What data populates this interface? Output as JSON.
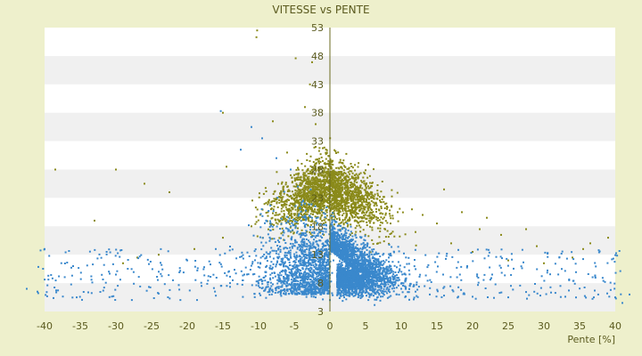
{
  "chart_data": {
    "type": "scatter",
    "title": "VITESSE vs PENTE",
    "xlabel": "Pente [%]",
    "ylabel": "",
    "xlim": [
      -40,
      40
    ],
    "ylim": [
      3,
      53
    ],
    "x_ticks": [
      "-40",
      "-35",
      "-30",
      "-25",
      "-20",
      "-15",
      "-10",
      "-5",
      "0",
      "5",
      "10",
      "15",
      "20",
      "25",
      "30",
      "35",
      "40"
    ],
    "y_ticks": [
      "53",
      "48",
      "43",
      "38",
      "33",
      "28",
      "23",
      "18",
      "13",
      "8",
      "3"
    ],
    "grid": "horizontal alternating bands",
    "series": [
      {
        "color": "#8a8a1a",
        "points": [
          [
            -10.2,
            52.5
          ],
          [
            -10.3,
            51.3
          ],
          [
            -4.8,
            47.6
          ],
          [
            -2.5,
            46.9
          ],
          [
            -2.8,
            43.0
          ],
          [
            -3.5,
            39.0
          ],
          [
            -15.0,
            38.0
          ],
          [
            -8.0,
            36.5
          ],
          [
            -2.0,
            36.0
          ],
          [
            -38.5,
            28.0
          ],
          [
            -30.0,
            28.0
          ],
          [
            -26.0,
            25.5
          ],
          [
            -33.0,
            19.0
          ],
          [
            -22.5,
            24.0
          ],
          [
            -14.5,
            28.5
          ],
          [
            -6.0,
            31.0
          ],
          [
            -2.0,
            32.0
          ],
          [
            -1.0,
            29.5
          ],
          [
            -5.5,
            27.0
          ],
          [
            -3.0,
            25.0
          ],
          [
            -1.0,
            24.0
          ],
          [
            0.5,
            27.0
          ],
          [
            1.5,
            26.0
          ],
          [
            2.5,
            25.0
          ],
          [
            3.5,
            24.0
          ],
          [
            5.0,
            23.5
          ],
          [
            6.5,
            22.0
          ],
          [
            8.0,
            21.5
          ],
          [
            9.5,
            20.5
          ],
          [
            11.5,
            21.0
          ],
          [
            13.0,
            20.0
          ],
          [
            15.0,
            18.5
          ],
          [
            16.0,
            24.5
          ],
          [
            18.5,
            20.5
          ],
          [
            21.0,
            17.5
          ],
          [
            22.0,
            19.5
          ],
          [
            24.0,
            16.5
          ],
          [
            27.5,
            17.5
          ],
          [
            29.0,
            14.5
          ],
          [
            35.5,
            14.0
          ],
          [
            36.5,
            15.0
          ],
          [
            39.0,
            16.0
          ],
          [
            34.0,
            12.5
          ],
          [
            30.0,
            11.5
          ],
          [
            25.0,
            12.0
          ],
          [
            20.0,
            13.5
          ],
          [
            17.0,
            15.0
          ],
          [
            12.0,
            17.0
          ],
          [
            8.5,
            18.5
          ],
          [
            4.0,
            19.5
          ],
          [
            -2.5,
            21.0
          ],
          [
            -4.5,
            19.0
          ],
          [
            -7.5,
            20.0
          ],
          [
            -11.0,
            18.0
          ],
          [
            -15.0,
            16.0
          ],
          [
            -19.0,
            14.0
          ],
          [
            -24.0,
            13.0
          ],
          [
            -27.0,
            12.5
          ],
          [
            -29.0,
            11.5
          ]
        ]
      },
      {
        "color": "#3a88cc",
        "points": [
          [
            -40.0,
            14.0
          ],
          [
            -41.0,
            6.5
          ],
          [
            -42.5,
            7.0
          ],
          [
            -36.0,
            11.0
          ],
          [
            -35.5,
            5.5
          ],
          [
            -30.0,
            9.5
          ],
          [
            -24.0,
            10.0
          ],
          [
            -20.0,
            12.0
          ],
          [
            -16.0,
            14.0
          ],
          [
            -15.3,
            38.3
          ],
          [
            -12.5,
            31.5
          ],
          [
            -11.0,
            35.5
          ],
          [
            -9.5,
            33.5
          ],
          [
            -7.5,
            30.0
          ],
          [
            -5.5,
            28.0
          ],
          [
            -4.5,
            25.0
          ],
          [
            -3.5,
            22.0
          ],
          [
            -2.5,
            19.5
          ],
          [
            -1.5,
            17.0
          ],
          [
            -0.5,
            14.0
          ],
          [
            0.5,
            12.0
          ],
          [
            1.5,
            11.0
          ],
          [
            2.5,
            10.5
          ],
          [
            3.5,
            9.8
          ],
          [
            4.5,
            9.2
          ],
          [
            5.5,
            8.7
          ],
          [
            6.5,
            8.3
          ],
          [
            7.5,
            7.8
          ],
          [
            8.5,
            7.5
          ],
          [
            10.0,
            7.0
          ],
          [
            12.0,
            6.5
          ],
          [
            14.0,
            6.0
          ],
          [
            16.0,
            5.8
          ],
          [
            18.0,
            5.6
          ],
          [
            20.0,
            5.6
          ],
          [
            23.0,
            5.4
          ],
          [
            25.0,
            5.5
          ],
          [
            29.5,
            5.8
          ],
          [
            33.0,
            5.6
          ],
          [
            37.0,
            5.5
          ],
          [
            40.0,
            5.5
          ],
          [
            41.0,
            4.5
          ],
          [
            42.0,
            6.0
          ],
          [
            -22.0,
            8.5
          ],
          [
            -18.0,
            7.5
          ],
          [
            -14.0,
            8.0
          ],
          [
            -12.0,
            9.5
          ],
          [
            -10.0,
            7.5
          ],
          [
            -8.0,
            6.5
          ],
          [
            -6.0,
            8.0
          ],
          [
            -4.0,
            6.5
          ],
          [
            -2.0,
            5.5
          ],
          [
            0.0,
            5.0
          ],
          [
            2.0,
            5.5
          ],
          [
            4.0,
            6.0
          ]
        ]
      }
    ]
  }
}
